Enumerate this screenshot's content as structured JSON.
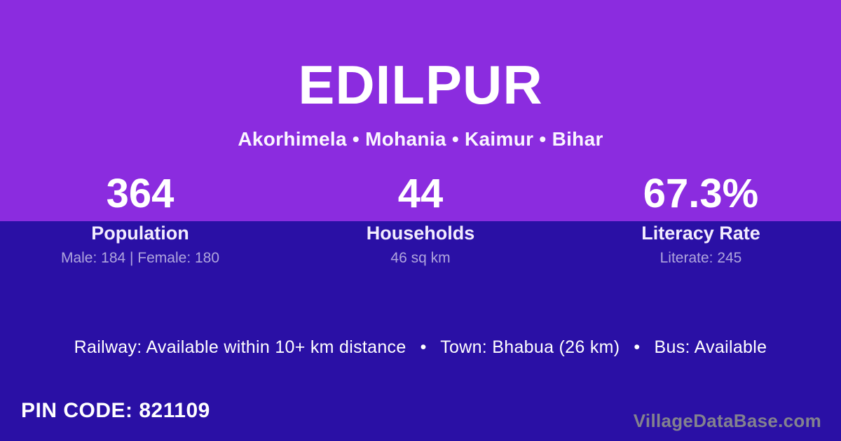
{
  "theme": {
    "purple": "#8B2CDF",
    "indigo": "#2A10A5",
    "muted": "rgba(255,255,255,0.62)",
    "watermark": "#83828E"
  },
  "header": {
    "title": "EDILPUR",
    "breadcrumb": "Akorhimela • Mohania • Kaimur • Bihar",
    "breadcrumb_parts": [
      "Akorhimela",
      "Mohania",
      "Kaimur",
      "Bihar"
    ]
  },
  "stats": [
    {
      "value": "364",
      "label": "Population",
      "sub": "Male: 184 | Female: 180"
    },
    {
      "value": "44",
      "label": "Households",
      "sub": "46 sq km"
    },
    {
      "value": "67.3%",
      "label": "Literacy Rate",
      "sub": "Literate: 245"
    }
  ],
  "transport": {
    "line": "Railway: Available within 10+ km distance  •  Town: Bhabua (26 km)  •  Bus: Available",
    "railway": "Available within 10+ km distance",
    "town": "Bhabua (26 km)",
    "bus": "Available"
  },
  "footer": {
    "pin_label": "PIN CODE:",
    "pin_value": "821109",
    "watermark": "VillageDataBase.com"
  }
}
